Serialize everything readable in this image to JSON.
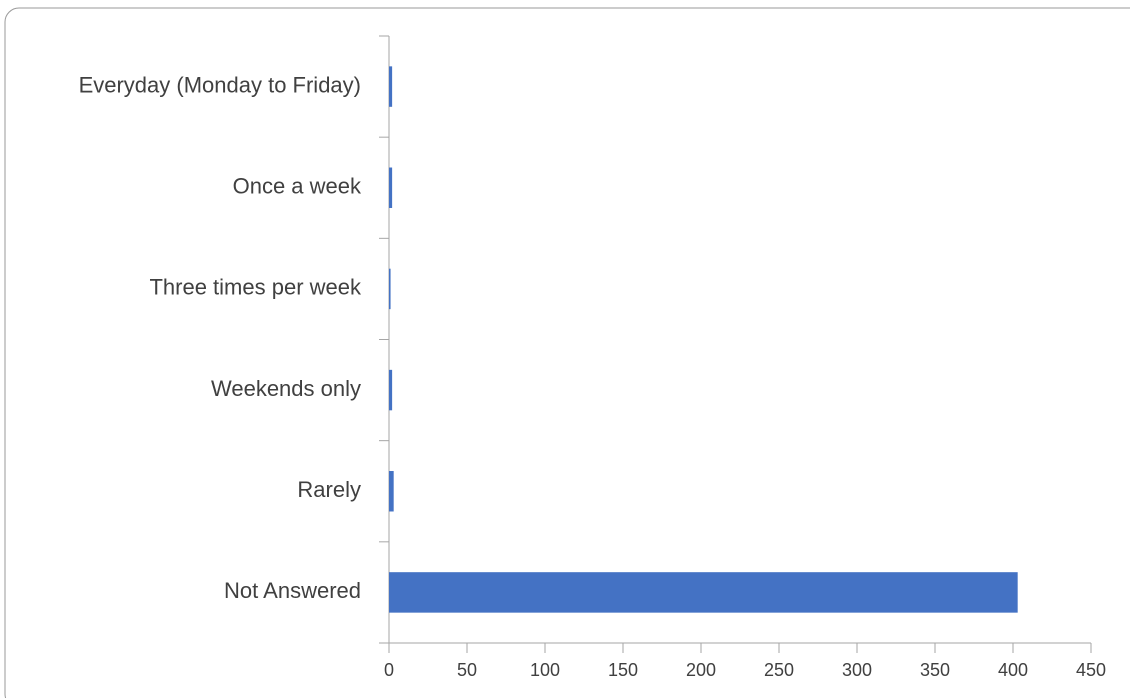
{
  "chart_data": {
    "type": "bar",
    "orientation": "horizontal",
    "categories": [
      "Everyday (Monday to Friday)",
      "Once a week",
      "Three times per week",
      "Weekends only",
      "Rarely",
      "Not Answered"
    ],
    "values": [
      2,
      2,
      1,
      2,
      3,
      403
    ],
    "color": "#4472c4",
    "xlim": [
      0,
      450
    ],
    "xticks": [
      0,
      50,
      100,
      150,
      200,
      250,
      300,
      350,
      400,
      450
    ],
    "grid": false
  }
}
